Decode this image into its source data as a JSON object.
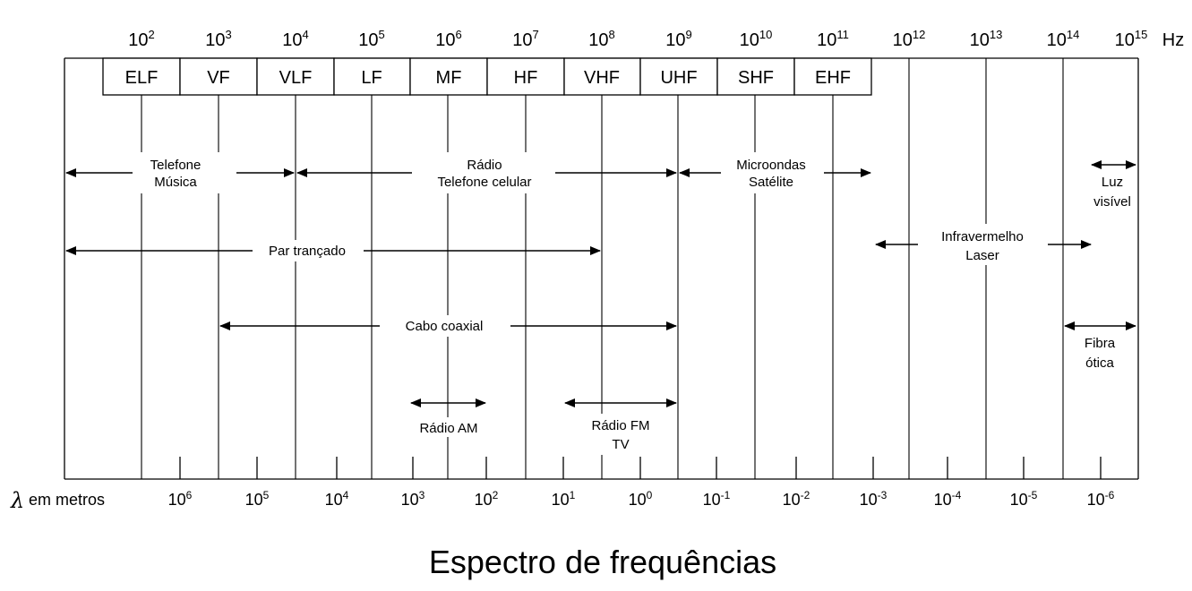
{
  "title": "Espectro de frequências",
  "frequency_axis": {
    "unit": "Hz",
    "ticks": [
      {
        "base": "10",
        "exp": "2"
      },
      {
        "base": "10",
        "exp": "3"
      },
      {
        "base": "10",
        "exp": "4"
      },
      {
        "base": "10",
        "exp": "5"
      },
      {
        "base": "10",
        "exp": "6"
      },
      {
        "base": "10",
        "exp": "7"
      },
      {
        "base": "10",
        "exp": "8"
      },
      {
        "base": "10",
        "exp": "9"
      },
      {
        "base": "10",
        "exp": "10"
      },
      {
        "base": "10",
        "exp": "11"
      },
      {
        "base": "10",
        "exp": "12"
      },
      {
        "base": "10",
        "exp": "13"
      },
      {
        "base": "10",
        "exp": "14"
      },
      {
        "base": "10",
        "exp": "15"
      }
    ]
  },
  "bands": [
    "ELF",
    "VF",
    "VLF",
    "LF",
    "MF",
    "HF",
    "VHF",
    "UHF",
    "SHF",
    "EHF"
  ],
  "wavelength_axis": {
    "symbol": "λ",
    "label": "em metros",
    "ticks": [
      {
        "base": "10",
        "exp": "6"
      },
      {
        "base": "10",
        "exp": "5"
      },
      {
        "base": "10",
        "exp": "4"
      },
      {
        "base": "10",
        "exp": "3"
      },
      {
        "base": "10",
        "exp": "2"
      },
      {
        "base": "10",
        "exp": "1"
      },
      {
        "base": "10",
        "exp": "0"
      },
      {
        "base": "10",
        "exp": "-1"
      },
      {
        "base": "10",
        "exp": "-2"
      },
      {
        "base": "10",
        "exp": "-3"
      },
      {
        "base": "10",
        "exp": "-4"
      },
      {
        "base": "10",
        "exp": "-5"
      },
      {
        "base": "10",
        "exp": "-6"
      }
    ]
  },
  "applications": [
    {
      "name": "telefone-musica",
      "lines": [
        "Telefone",
        "Música"
      ]
    },
    {
      "name": "radio-telefone-celular",
      "lines": [
        "Rádio",
        "Telefone celular"
      ]
    },
    {
      "name": "microondas-satelite",
      "lines": [
        "Microondas",
        "Satélite"
      ]
    },
    {
      "name": "luz-visivel",
      "lines": [
        "Luz",
        "visível"
      ]
    },
    {
      "name": "par-trancado",
      "lines": [
        "Par trançado"
      ]
    },
    {
      "name": "infravermelho-laser",
      "lines": [
        "Infravermelho",
        "Laser"
      ]
    },
    {
      "name": "cabo-coaxial",
      "lines": [
        "Cabo coaxial"
      ]
    },
    {
      "name": "fibra-otica",
      "lines": [
        "Fibra",
        "ótica"
      ]
    },
    {
      "name": "radio-am",
      "lines": [
        "Rádio AM"
      ]
    },
    {
      "name": "radio-fm-tv",
      "lines": [
        "Rádio FM",
        "TV"
      ]
    }
  ]
}
